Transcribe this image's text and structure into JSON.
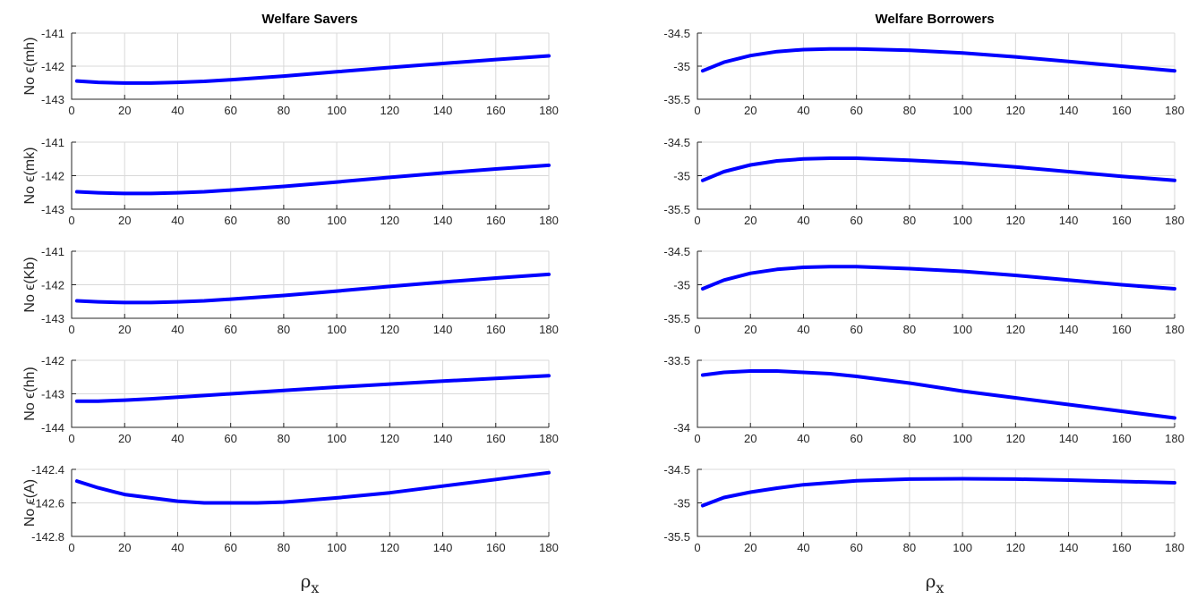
{
  "columns": {
    "left": {
      "title": "Welfare Savers"
    },
    "right": {
      "title": "Welfare Borrowers"
    }
  },
  "xlabel": {
    "symbol": "ρ",
    "subscript": "x"
  },
  "chart_data": [
    {
      "type": "line",
      "title": "Welfare Savers",
      "ylabel": "No ϵ(mh)",
      "xlim": [
        0,
        180
      ],
      "ylim": [
        -143,
        -141
      ],
      "xticks": [
        0,
        20,
        40,
        60,
        80,
        100,
        120,
        140,
        160,
        180
      ],
      "yticks": [
        -143,
        -142,
        -141
      ],
      "ytick_labels": [
        "-143",
        "-142",
        "-141"
      ],
      "grid": true,
      "x": [
        2,
        10,
        20,
        25,
        30,
        40,
        50,
        60,
        80,
        100,
        120,
        140,
        160,
        180
      ],
      "y": [
        -142.45,
        -142.49,
        -142.51,
        -142.51,
        -142.51,
        -142.49,
        -142.46,
        -142.41,
        -142.3,
        -142.17,
        -142.04,
        -141.92,
        -141.8,
        -141.69
      ]
    },
    {
      "type": "line",
      "title": "Welfare Borrowers",
      "ylabel": "",
      "xlim": [
        0,
        180
      ],
      "ylim": [
        -35.5,
        -34.5
      ],
      "xticks": [
        0,
        20,
        40,
        60,
        80,
        100,
        120,
        140,
        160,
        180
      ],
      "yticks": [
        -35.5,
        -35,
        -34.5
      ],
      "ytick_labels": [
        "-35.5",
        "-35",
        "-34.5"
      ],
      "grid": true,
      "x": [
        2,
        10,
        20,
        30,
        40,
        50,
        55,
        60,
        80,
        100,
        120,
        140,
        160,
        180
      ],
      "y": [
        -35.07,
        -34.94,
        -34.84,
        -34.78,
        -34.75,
        -34.74,
        -34.74,
        -34.74,
        -34.76,
        -34.8,
        -34.86,
        -34.93,
        -35.0,
        -35.07
      ]
    },
    {
      "type": "line",
      "ylabel": "No ϵ(mk)",
      "xlim": [
        0,
        180
      ],
      "ylim": [
        -143,
        -141
      ],
      "xticks": [
        0,
        20,
        40,
        60,
        80,
        100,
        120,
        140,
        160,
        180
      ],
      "yticks": [
        -143,
        -142,
        -141
      ],
      "ytick_labels": [
        "-143",
        "-142",
        "-141"
      ],
      "grid": true,
      "x": [
        2,
        10,
        20,
        25,
        30,
        40,
        50,
        60,
        80,
        100,
        120,
        140,
        160,
        180
      ],
      "y": [
        -142.48,
        -142.51,
        -142.53,
        -142.53,
        -142.53,
        -142.51,
        -142.48,
        -142.43,
        -142.32,
        -142.19,
        -142.05,
        -141.92,
        -141.8,
        -141.69
      ]
    },
    {
      "type": "line",
      "ylabel": "",
      "xlim": [
        0,
        180
      ],
      "ylim": [
        -35.5,
        -34.5
      ],
      "xticks": [
        0,
        20,
        40,
        60,
        80,
        100,
        120,
        140,
        160,
        180
      ],
      "yticks": [
        -35.5,
        -35,
        -34.5
      ],
      "ytick_labels": [
        "-35.5",
        "-35",
        "-34.5"
      ],
      "grid": true,
      "x": [
        2,
        10,
        20,
        30,
        40,
        50,
        55,
        60,
        80,
        100,
        120,
        140,
        160,
        180
      ],
      "y": [
        -35.07,
        -34.94,
        -34.84,
        -34.78,
        -34.75,
        -34.74,
        -34.74,
        -34.74,
        -34.77,
        -34.81,
        -34.87,
        -34.94,
        -35.01,
        -35.07
      ]
    },
    {
      "type": "line",
      "ylabel": "No ϵ(Kb)",
      "xlim": [
        0,
        180
      ],
      "ylim": [
        -143,
        -141
      ],
      "xticks": [
        0,
        20,
        40,
        60,
        80,
        100,
        120,
        140,
        160,
        180
      ],
      "yticks": [
        -143,
        -142,
        -141
      ],
      "ytick_labels": [
        "-143",
        "-142",
        "-141"
      ],
      "grid": true,
      "x": [
        2,
        10,
        20,
        25,
        30,
        40,
        50,
        60,
        80,
        100,
        120,
        140,
        160,
        180
      ],
      "y": [
        -142.48,
        -142.51,
        -142.53,
        -142.53,
        -142.53,
        -142.51,
        -142.48,
        -142.43,
        -142.32,
        -142.19,
        -142.05,
        -141.92,
        -141.8,
        -141.69
      ]
    },
    {
      "type": "line",
      "ylabel": "",
      "xlim": [
        0,
        180
      ],
      "ylim": [
        -35.5,
        -34.5
      ],
      "xticks": [
        0,
        20,
        40,
        60,
        80,
        100,
        120,
        140,
        160,
        180
      ],
      "yticks": [
        -35.5,
        -35,
        -34.5
      ],
      "ytick_labels": [
        "-35.5",
        "-35",
        "-34.5"
      ],
      "grid": true,
      "x": [
        2,
        10,
        20,
        30,
        40,
        50,
        55,
        60,
        80,
        100,
        120,
        140,
        160,
        180
      ],
      "y": [
        -35.06,
        -34.93,
        -34.83,
        -34.77,
        -34.74,
        -34.73,
        -34.73,
        -34.73,
        -34.76,
        -34.8,
        -34.86,
        -34.93,
        -35.0,
        -35.06
      ]
    },
    {
      "type": "line",
      "ylabel": "No ϵ(hh)",
      "xlim": [
        0,
        180
      ],
      "ylim": [
        -144,
        -142
      ],
      "xticks": [
        0,
        20,
        40,
        60,
        80,
        100,
        120,
        140,
        160,
        180
      ],
      "yticks": [
        -144,
        -143,
        -142
      ],
      "ytick_labels": [
        "-144",
        "-143",
        "-142"
      ],
      "grid": true,
      "x": [
        2,
        10,
        20,
        30,
        40,
        50,
        60,
        80,
        100,
        120,
        140,
        160,
        180
      ],
      "y": [
        -143.22,
        -143.22,
        -143.19,
        -143.15,
        -143.1,
        -143.05,
        -143.0,
        -142.9,
        -142.8,
        -142.71,
        -142.62,
        -142.54,
        -142.46
      ]
    },
    {
      "type": "line",
      "ylabel": "",
      "xlim": [
        0,
        180
      ],
      "ylim": [
        -34,
        -33.5
      ],
      "xticks": [
        0,
        20,
        40,
        60,
        80,
        100,
        120,
        140,
        160,
        180
      ],
      "yticks": [
        -34,
        -33.5
      ],
      "ytick_labels": [
        "-34",
        "-33.5"
      ],
      "grid": true,
      "x": [
        2,
        10,
        20,
        30,
        40,
        50,
        60,
        80,
        100,
        120,
        140,
        160,
        180
      ],
      "y": [
        -33.61,
        -33.59,
        -33.58,
        -33.58,
        -33.59,
        -33.6,
        -33.62,
        -33.67,
        -33.73,
        -33.78,
        -33.83,
        -33.88,
        -33.93
      ]
    },
    {
      "type": "line",
      "ylabel": "No ϵ(A)",
      "xlim": [
        0,
        180
      ],
      "ylim": [
        -142.8,
        -142.4
      ],
      "xticks": [
        0,
        20,
        40,
        60,
        80,
        100,
        120,
        140,
        160,
        180
      ],
      "yticks": [
        -142.8,
        -142.6,
        -142.4
      ],
      "ytick_labels": [
        "-142.8",
        "-142.6",
        "-142.4"
      ],
      "grid": true,
      "x": [
        2,
        10,
        20,
        30,
        40,
        50,
        60,
        70,
        80,
        100,
        120,
        140,
        160,
        180
      ],
      "y": [
        -142.47,
        -142.51,
        -142.55,
        -142.57,
        -142.59,
        -142.6,
        -142.6,
        -142.6,
        -142.595,
        -142.57,
        -142.54,
        -142.5,
        -142.46,
        -142.42
      ]
    },
    {
      "type": "line",
      "ylabel": "",
      "xlim": [
        0,
        180
      ],
      "ylim": [
        -35.5,
        -34.5
      ],
      "xticks": [
        0,
        20,
        40,
        60,
        80,
        100,
        120,
        140,
        160,
        180
      ],
      "yticks": [
        -35.5,
        -35,
        -34.5
      ],
      "ytick_labels": [
        "-35.5",
        "-35",
        "-34.5"
      ],
      "grid": true,
      "x": [
        2,
        10,
        20,
        30,
        40,
        60,
        80,
        100,
        120,
        140,
        160,
        180
      ],
      "y": [
        -35.04,
        -34.92,
        -34.84,
        -34.78,
        -34.73,
        -34.67,
        -34.645,
        -34.64,
        -34.645,
        -34.66,
        -34.68,
        -34.7
      ]
    }
  ],
  "style": {
    "line_color": "#0000ff",
    "grid_color": "#d9d9d9",
    "axis_color": "#262626"
  }
}
